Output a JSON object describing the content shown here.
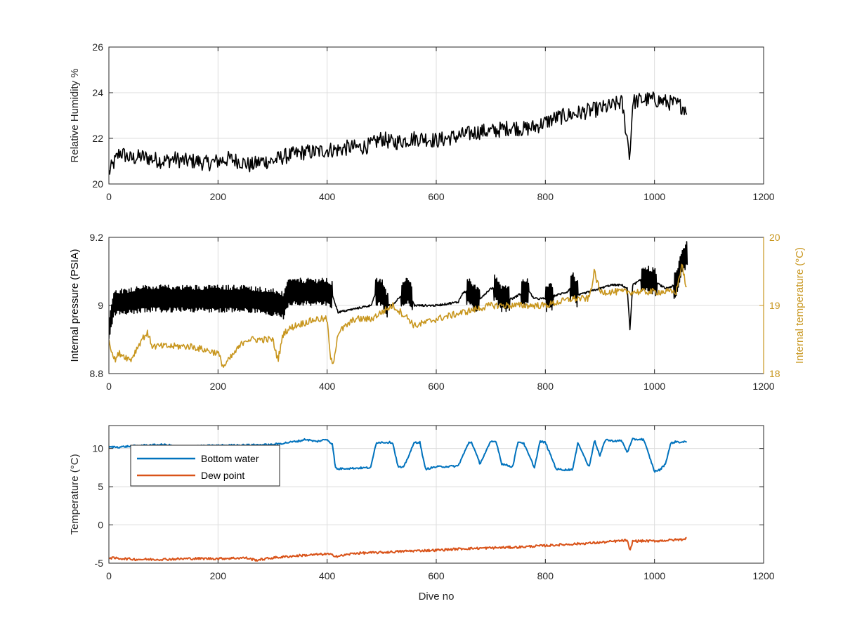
{
  "chart_data": [
    {
      "type": "line",
      "xlabel": "",
      "ylabel": "Relative Humidity %",
      "xlim": [
        0,
        1200
      ],
      "ylim": [
        20,
        26
      ],
      "xticks": [
        "0",
        "200",
        "400",
        "600",
        "800",
        "1000",
        "1200"
      ],
      "yticks": [
        "20",
        "22",
        "24",
        "26"
      ],
      "grid": true,
      "series": [
        {
          "color": "#000000",
          "x": [
            0,
            20,
            40,
            60,
            80,
            100,
            120,
            140,
            160,
            180,
            200,
            220,
            240,
            260,
            280,
            300,
            320,
            340,
            360,
            380,
            400,
            420,
            440,
            460,
            480,
            500,
            520,
            540,
            560,
            580,
            600,
            620,
            640,
            660,
            680,
            700,
            720,
            740,
            760,
            780,
            800,
            820,
            840,
            860,
            880,
            900,
            920,
            940,
            955,
            960,
            980,
            1000,
            1020,
            1040,
            1060
          ],
          "y": [
            20.5,
            21.4,
            21.1,
            21.2,
            21.1,
            21.0,
            21.1,
            21.0,
            21.0,
            20.9,
            21.0,
            21.1,
            21.0,
            20.8,
            21.0,
            21.0,
            21.2,
            21.3,
            21.4,
            21.4,
            21.5,
            21.5,
            21.6,
            21.6,
            21.7,
            22.0,
            21.8,
            21.9,
            22.0,
            22.0,
            21.9,
            22.0,
            22.1,
            22.2,
            22.3,
            22.3,
            22.4,
            22.5,
            22.4,
            22.5,
            22.7,
            22.9,
            23.0,
            23.1,
            23.2,
            23.3,
            23.4,
            23.6,
            21.2,
            23.6,
            23.7,
            23.7,
            23.6,
            23.5,
            23.3
          ]
        }
      ]
    },
    {
      "type": "line",
      "xlabel": "",
      "ylabel": "Internal pressure (PSIA)",
      "y2label": "Internal temperature (°C)",
      "xlim": [
        0,
        1200
      ],
      "ylim": [
        8.8,
        9.2
      ],
      "y2lim": [
        18,
        20
      ],
      "xticks": [
        "0",
        "200",
        "400",
        "600",
        "800",
        "1000",
        "1200"
      ],
      "yticks": [
        "8.8",
        "9",
        "9.2"
      ],
      "y2ticks": [
        "18",
        "19",
        "20"
      ],
      "grid": true,
      "series": [
        {
          "color": "#000000",
          "axis": "left",
          "x": [
            0,
            10,
            30,
            60,
            80,
            100,
            150,
            200,
            250,
            300,
            320,
            330,
            350,
            380,
            400,
            410,
            420,
            450,
            480,
            490,
            500,
            510,
            520,
            540,
            550,
            560,
            600,
            640,
            650,
            660,
            670,
            680,
            700,
            710,
            720,
            740,
            760,
            770,
            780,
            800,
            820,
            840,
            850,
            860,
            880,
            900,
            920,
            940,
            950,
            955,
            960,
            980,
            1000,
            1020,
            1040,
            1050,
            1060
          ],
          "y": [
            8.93,
            9.01,
            9.01,
            9.02,
            9.02,
            9.02,
            9.02,
            9.02,
            9.02,
            9.01,
            9.0,
            9.04,
            9.04,
            9.04,
            9.04,
            9.03,
            8.98,
            8.99,
            9.0,
            9.04,
            9.04,
            9.0,
            9.0,
            9.04,
            9.04,
            9.0,
            9.0,
            9.01,
            9.04,
            9.04,
            9.02,
            9.02,
            9.05,
            9.05,
            9.02,
            9.02,
            9.04,
            9.04,
            9.02,
            9.02,
            9.03,
            9.04,
            9.06,
            9.03,
            9.04,
            9.05,
            9.06,
            9.06,
            9.05,
            8.93,
            9.06,
            9.08,
            9.07,
            9.05,
            9.06,
            9.13,
            9.15
          ]
        },
        {
          "color": "#C8961E",
          "axis": "right",
          "x": [
            0,
            10,
            20,
            40,
            60,
            70,
            80,
            100,
            150,
            200,
            210,
            250,
            300,
            310,
            320,
            340,
            380,
            400,
            405,
            410,
            420,
            450,
            480,
            500,
            520,
            550,
            560,
            600,
            650,
            700,
            750,
            800,
            850,
            880,
            890,
            900,
            920,
            950,
            1000,
            1040,
            1050,
            1060
          ],
          "y": [
            18.5,
            18.2,
            18.3,
            18.2,
            18.5,
            18.6,
            18.4,
            18.4,
            18.4,
            18.3,
            18.1,
            18.5,
            18.5,
            18.2,
            18.6,
            18.7,
            18.8,
            18.8,
            18.3,
            18.1,
            18.6,
            18.8,
            18.8,
            18.9,
            19.0,
            18.8,
            18.7,
            18.8,
            18.9,
            19.0,
            19.0,
            19.0,
            19.1,
            19.1,
            19.5,
            19.2,
            19.2,
            19.2,
            19.2,
            19.2,
            19.6,
            19.2
          ]
        }
      ]
    },
    {
      "type": "line",
      "xlabel": "Dive no",
      "ylabel": "Temperature (°C)",
      "xlim": [
        0,
        1200
      ],
      "ylim": [
        -5,
        13
      ],
      "xticks": [
        "0",
        "200",
        "400",
        "600",
        "800",
        "1000",
        "1200"
      ],
      "yticks": [
        "-5",
        "0",
        "5",
        "10"
      ],
      "grid": true,
      "legend": {
        "placement": "top-left"
      },
      "series": [
        {
          "name": "Bottom water",
          "color": "#0072BD",
          "x": [
            0,
            20,
            60,
            100,
            115,
            120,
            200,
            300,
            320,
            350,
            360,
            380,
            400,
            410,
            415,
            420,
            430,
            440,
            480,
            490,
            500,
            520,
            530,
            540,
            560,
            570,
            580,
            600,
            640,
            660,
            665,
            680,
            700,
            710,
            720,
            740,
            750,
            760,
            780,
            790,
            800,
            820,
            840,
            850,
            860,
            880,
            890,
            900,
            910,
            920,
            940,
            950,
            960,
            980,
            1000,
            1010,
            1020,
            1030,
            1040,
            1050,
            1060
          ],
          "y": [
            10.2,
            10.2,
            10.4,
            10.5,
            10.4,
            10.2,
            10.4,
            10.5,
            10.7,
            11.0,
            11.2,
            10.9,
            11.2,
            10.5,
            7.5,
            7.3,
            7.4,
            7.4,
            7.5,
            10.8,
            10.8,
            10.8,
            7.6,
            7.5,
            10.8,
            10.8,
            7.3,
            7.6,
            7.7,
            10.8,
            10.8,
            8.0,
            10.9,
            10.9,
            8.0,
            7.6,
            10.9,
            10.7,
            7.5,
            10.9,
            10.8,
            7.3,
            7.2,
            7.3,
            10.8,
            7.5,
            11.1,
            9.0,
            11.2,
            11.0,
            11.0,
            9.5,
            11.2,
            11.2,
            7.0,
            7.2,
            8.0,
            10.7,
            10.9,
            10.8,
            10.9
          ]
        },
        {
          "name": "Dew point",
          "color": "#D95319",
          "x": [
            0,
            50,
            100,
            150,
            200,
            250,
            270,
            300,
            350,
            400,
            420,
            450,
            500,
            550,
            600,
            650,
            700,
            750,
            800,
            850,
            900,
            950,
            955,
            960,
            1000,
            1050,
            1060
          ],
          "y": [
            -4.3,
            -4.5,
            -4.5,
            -4.4,
            -4.4,
            -4.3,
            -4.6,
            -4.3,
            -4.0,
            -3.8,
            -4.1,
            -3.7,
            -3.6,
            -3.4,
            -3.3,
            -3.1,
            -3.0,
            -2.9,
            -2.7,
            -2.5,
            -2.3,
            -2.0,
            -3.5,
            -2.1,
            -2.1,
            -1.9,
            -1.7
          ]
        }
      ]
    }
  ]
}
